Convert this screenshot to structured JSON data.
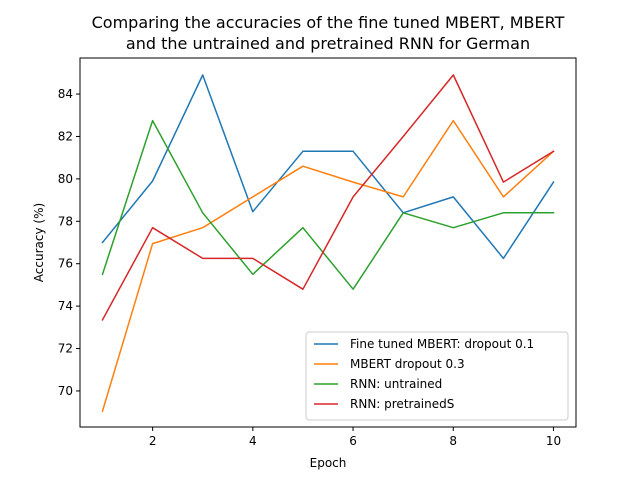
{
  "chart_data": {
    "type": "line",
    "title_lines": [
      "Comparing the accuracies of the fine tuned MBERT, MBERT",
      "and the untrained and pretrained RNN for German"
    ],
    "xlabel": "Epoch",
    "ylabel": "Accuracy (%)",
    "xlim": [
      0.55,
      10.45
    ],
    "ylim": [
      68.3,
      85.7
    ],
    "x_ticks": [
      2,
      4,
      6,
      8,
      10
    ],
    "y_ticks": [
      70,
      72,
      74,
      76,
      78,
      80,
      82,
      84
    ],
    "x": [
      1,
      2,
      3,
      4,
      5,
      6,
      7,
      8,
      9,
      10
    ],
    "grid": false,
    "legend_position": "lower right",
    "series": [
      {
        "name": "Fine tuned MBERT: dropout 0.1",
        "color": "#1f77b4",
        "values": [
          77.0,
          79.9,
          84.9,
          78.45,
          81.3,
          81.3,
          78.4,
          79.15,
          76.25,
          79.85
        ]
      },
      {
        "name": "MBERT dropout 0.3",
        "color": "#ff7f0e",
        "values": [
          69.05,
          76.95,
          77.7,
          79.15,
          80.6,
          79.85,
          79.15,
          82.75,
          79.15,
          81.3
        ]
      },
      {
        "name": "RNN: untrained",
        "color": "#2ca02c",
        "values": [
          75.5,
          82.75,
          78.4,
          75.5,
          77.7,
          74.8,
          78.4,
          77.7,
          78.4,
          78.4
        ]
      },
      {
        "name": "RNN: pretrainedS",
        "color": "#d62728",
        "values": [
          73.35,
          77.7,
          76.25,
          76.25,
          74.8,
          79.15,
          82.0,
          84.9,
          79.85,
          81.3
        ]
      }
    ]
  }
}
